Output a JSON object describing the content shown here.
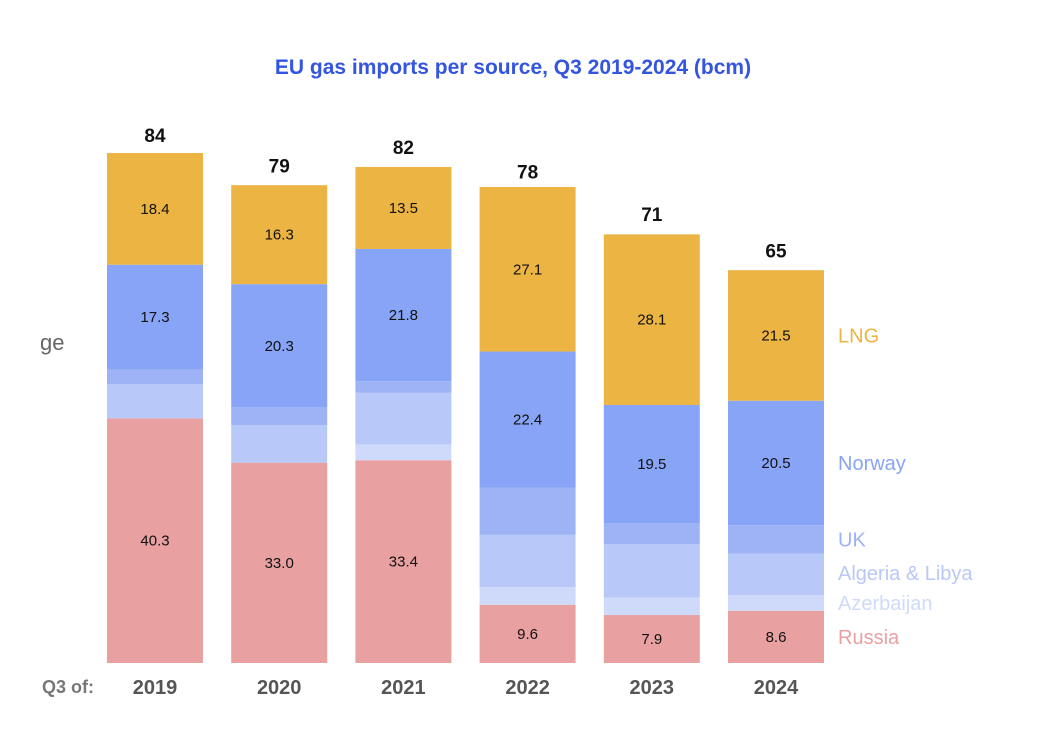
{
  "chart_data": {
    "type": "bar",
    "stacked": true,
    "title": "EU gas imports per source, Q3 2019-2024 (bcm)",
    "x_prefix": "Q3 of:",
    "categories": [
      "2019",
      "2020",
      "2021",
      "2022",
      "2023",
      "2024"
    ],
    "totals": [
      84,
      79,
      82,
      78,
      71,
      65
    ],
    "ylim": [
      0,
      84
    ],
    "series": [
      {
        "name": "Russia",
        "color": "#E8A0A0",
        "values": [
          40.3,
          33.0,
          33.4,
          9.6,
          7.9,
          8.6
        ],
        "labels": [
          "40.3",
          "33.0",
          "33.4",
          "9.6",
          "7.9",
          "8.6"
        ]
      },
      {
        "name": "Azerbaijan",
        "color": "#CFDAFB",
        "values": [
          0,
          0,
          2.6,
          2.9,
          2.9,
          2.6
        ],
        "labels": null
      },
      {
        "name": "Algeria & Libya",
        "color": "#B8C8F8",
        "values": [
          5.6,
          6.2,
          8.5,
          8.6,
          8.8,
          6.8
        ],
        "labels": null
      },
      {
        "name": "UK",
        "color": "#9DB3F6",
        "values": [
          2.4,
          2.9,
          1.9,
          7.8,
          3.4,
          4.7
        ],
        "labels": null
      },
      {
        "name": "Norway",
        "color": "#88A4F6",
        "values": [
          17.3,
          20.3,
          21.8,
          22.4,
          19.5,
          20.5
        ],
        "labels": [
          "17.3",
          "20.3",
          "21.8",
          "22.4",
          "19.5",
          "20.5"
        ]
      },
      {
        "name": "LNG",
        "color": "#ECB443",
        "values": [
          18.4,
          16.3,
          13.5,
          27.1,
          28.1,
          21.5
        ],
        "labels": [
          "18.4",
          "16.3",
          "13.5",
          "27.1",
          "28.1",
          "21.5"
        ]
      }
    ],
    "legend_placement": "right",
    "grid": false,
    "title_color": "#3355E0",
    "cutoff_text": "ge"
  }
}
